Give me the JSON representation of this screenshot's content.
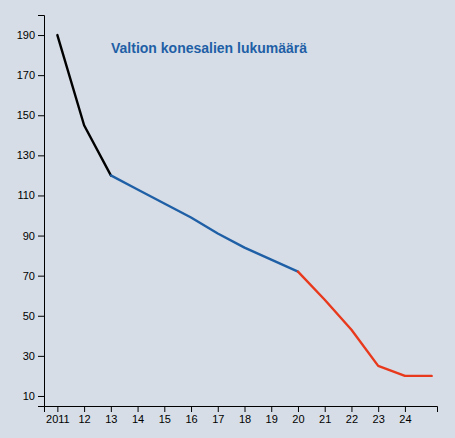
{
  "chart_data": {
    "type": "line",
    "title": "Valtion konesalien lukumäärä",
    "x": [
      2011,
      2012,
      2013,
      2014,
      2015,
      2016,
      2017,
      2018,
      2019,
      2020,
      2021,
      2022,
      2023,
      2024,
      2025
    ],
    "series": [
      {
        "color": "#000000",
        "values": [
          190,
          145,
          120,
          null,
          null,
          null,
          null,
          null,
          null,
          null,
          null,
          null,
          null,
          null,
          null
        ]
      },
      {
        "color": "#1f5fa6",
        "values": [
          null,
          null,
          120,
          113,
          106,
          99,
          91,
          84,
          78,
          72,
          null,
          null,
          null,
          null,
          null
        ]
      },
      {
        "color": "#e8391d",
        "values": [
          null,
          null,
          null,
          null,
          null,
          null,
          null,
          null,
          null,
          72,
          58,
          43,
          25,
          20,
          20
        ]
      }
    ],
    "xlim": [
      2010.5,
      2025.2
    ],
    "xticks": [
      2011,
      {
        "value": 2012,
        "label": "12"
      },
      {
        "value": 2013,
        "label": "13"
      },
      {
        "value": 2014,
        "label": "14"
      },
      {
        "value": 2015,
        "label": "15"
      },
      {
        "value": 2016,
        "label": "16"
      },
      {
        "value": 2017,
        "label": "17"
      },
      {
        "value": 2018,
        "label": "18"
      },
      {
        "value": 2019,
        "label": "19"
      },
      {
        "value": 2020,
        "label": "20"
      },
      {
        "value": 2021,
        "label": "21"
      },
      {
        "value": 2022,
        "label": "22"
      },
      {
        "value": 2023,
        "label": "23"
      },
      {
        "value": 2024,
        "label": "24"
      }
    ],
    "ylim": [
      5,
      200
    ],
    "yticks": [
      10,
      30,
      50,
      70,
      90,
      110,
      130,
      150,
      170,
      190
    ],
    "grid": false
  }
}
